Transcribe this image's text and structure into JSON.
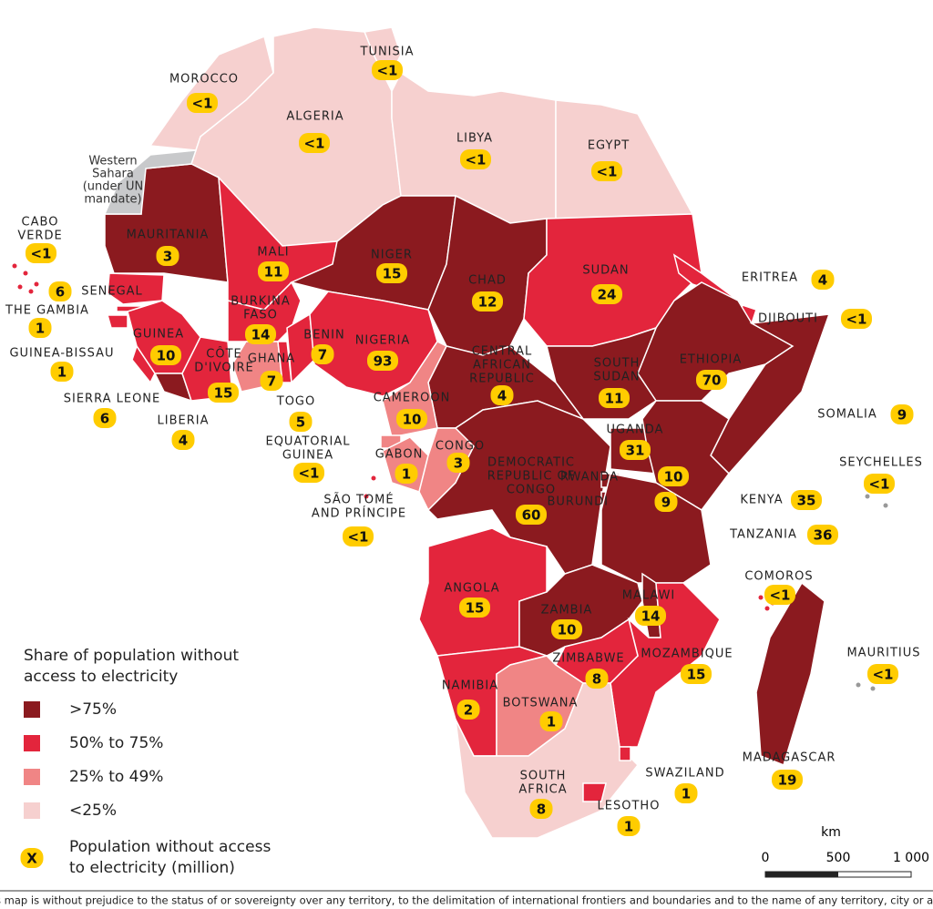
{
  "legend": {
    "title": [
      "Share of population without",
      "access to electricity"
    ],
    "items": [
      {
        "label": ">75%",
        "color": "#8b1a1f"
      },
      {
        "label": "50% to 75%",
        "color": "#e3253c"
      },
      {
        "label": "25% to 49%",
        "color": "#f08585"
      },
      {
        "label": "<25%",
        "color": "#f6d0cf"
      }
    ],
    "badge": {
      "symbol": "X",
      "label": [
        "Population without access",
        "to electricity (million)"
      ]
    }
  },
  "disputed": {
    "label": [
      "Western",
      "Sahara",
      "(under UN",
      "mandate)"
    ]
  },
  "countries": [
    {
      "name": [
        "MOROCCO"
      ],
      "value": "<1",
      "class": 3
    },
    {
      "name": [
        "TUNISIA"
      ],
      "value": "<1",
      "class": 3
    },
    {
      "name": [
        "ALGERIA"
      ],
      "value": "<1",
      "class": 3
    },
    {
      "name": [
        "LIBYA"
      ],
      "value": "<1",
      "class": 3
    },
    {
      "name": [
        "EGYPT"
      ],
      "value": "<1",
      "class": 3
    },
    {
      "name": [
        "MAURITANIA"
      ],
      "value": "3",
      "class": 0
    },
    {
      "name": [
        "MALI"
      ],
      "value": "11",
      "class": 1
    },
    {
      "name": [
        "NIGER"
      ],
      "value": "15",
      "class": 0
    },
    {
      "name": [
        "CHAD"
      ],
      "value": "12",
      "class": 0
    },
    {
      "name": [
        "SUDAN"
      ],
      "value": "24",
      "class": 1
    },
    {
      "name": [
        "ERITREA"
      ],
      "value": "4",
      "class": 1
    },
    {
      "name": [
        "DJIBOUTI"
      ],
      "value": "<1",
      "class": 1
    },
    {
      "name": [
        "ETHIOPIA"
      ],
      "value": "70",
      "class": 0
    },
    {
      "name": [
        "SOMALIA"
      ],
      "value": "9",
      "class": 0
    },
    {
      "name": [
        "SOUTH",
        "SUDAN"
      ],
      "value": "11",
      "class": 0
    },
    {
      "name": [
        "CENTRAL",
        "AFRICAN",
        "REPUBLIC"
      ],
      "value": "4",
      "class": 0
    },
    {
      "name": [
        "SENEGAL"
      ],
      "value": "6",
      "class": 1
    },
    {
      "name": [
        "THE GAMBIA"
      ],
      "value": "1",
      "class": 1
    },
    {
      "name": [
        "GUINEA-BISSAU"
      ],
      "value": "1",
      "class": 1
    },
    {
      "name": [
        "GUINEA"
      ],
      "value": "10",
      "class": 1
    },
    {
      "name": [
        "SIERRA LEONE"
      ],
      "value": "6",
      "class": 1
    },
    {
      "name": [
        "LIBERIA"
      ],
      "value": "4",
      "class": 0
    },
    {
      "name": [
        "CÔTE",
        "D'IVOIRE"
      ],
      "value": "15",
      "class": 1
    },
    {
      "name": [
        "BURKINA",
        "FASO"
      ],
      "value": "14",
      "class": 1
    },
    {
      "name": [
        "GHANA"
      ],
      "value": "7",
      "class": 2
    },
    {
      "name": [
        "TOGO"
      ],
      "value": "5",
      "class": 1
    },
    {
      "name": [
        "BENIN"
      ],
      "value": "7",
      "class": 1
    },
    {
      "name": [
        "NIGERIA"
      ],
      "value": "93",
      "class": 1
    },
    {
      "name": [
        "CAMEROON"
      ],
      "value": "10",
      "class": 2
    },
    {
      "name": [
        "EQUATORIAL",
        "GUINEA"
      ],
      "value": "<1",
      "class": 2
    },
    {
      "name": [
        "GABON"
      ],
      "value": "1",
      "class": 2
    },
    {
      "name": [
        "CONGO"
      ],
      "value": "3",
      "class": 2
    },
    {
      "name": [
        "SÃO TOMÉ",
        "AND PRÍNCIPE"
      ],
      "value": "<1",
      "class": 1
    },
    {
      "name": [
        "DEMOCRATIC",
        "REPUBLIC OF",
        "CONGO"
      ],
      "value": "60",
      "class": 0
    },
    {
      "name": [
        "UGANDA"
      ],
      "value": "31",
      "class": 0
    },
    {
      "name": [
        "RWANDA"
      ],
      "value": "10",
      "class": 0
    },
    {
      "name": [
        "BURUNDI"
      ],
      "value": "9",
      "class": 0
    },
    {
      "name": [
        "KENYA"
      ],
      "value": "35",
      "class": 0
    },
    {
      "name": [
        "TANZANIA"
      ],
      "value": "36",
      "class": 0
    },
    {
      "name": [
        "ANGOLA"
      ],
      "value": "15",
      "class": 1
    },
    {
      "name": [
        "ZAMBIA"
      ],
      "value": "10",
      "class": 0
    },
    {
      "name": [
        "MALAWI"
      ],
      "value": "14",
      "class": 0
    },
    {
      "name": [
        "MOZAMBIQUE"
      ],
      "value": "15",
      "class": 1
    },
    {
      "name": [
        "ZIMBABWE"
      ],
      "value": "8",
      "class": 1
    },
    {
      "name": [
        "NAMIBIA"
      ],
      "value": "2",
      "class": 1
    },
    {
      "name": [
        "BOTSWANA"
      ],
      "value": "1",
      "class": 2
    },
    {
      "name": [
        "SOUTH",
        "AFRICA"
      ],
      "value": "8",
      "class": 3
    },
    {
      "name": [
        "SWAZILAND"
      ],
      "value": "1",
      "class": 1
    },
    {
      "name": [
        "LESOTHO"
      ],
      "value": "1",
      "class": 1
    },
    {
      "name": [
        "MADAGASCAR"
      ],
      "value": "19",
      "class": 0
    },
    {
      "name": [
        "COMOROS"
      ],
      "value": "<1",
      "class": 1
    },
    {
      "name": [
        "MAURITIUS"
      ],
      "value": "<1",
      "class": 3
    },
    {
      "name": [
        "SEYCHELLES"
      ],
      "value": "<1",
      "class": 3
    },
    {
      "name": [
        "CABO",
        "VERDE"
      ],
      "value": "<1",
      "class": 1
    }
  ],
  "scale": {
    "unit": "km",
    "labels": [
      "0",
      "500",
      "1 000"
    ]
  },
  "footnote": "This map is without prejudice to the status of or sovereignty over any territory, to the delimitation of international frontiers and boundaries and to the name of any territory, city or area."
}
